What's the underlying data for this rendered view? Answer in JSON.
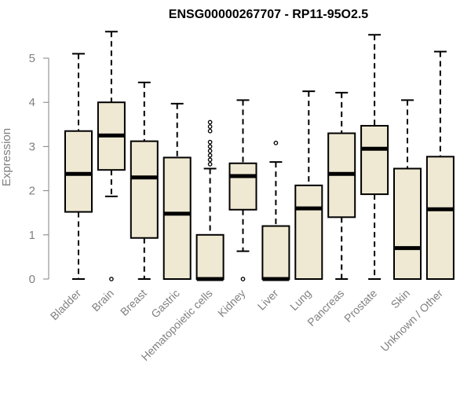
{
  "chart_data": {
    "type": "box",
    "title": "ENSG00000267707 - RP11-95O2.5",
    "xlabel": "",
    "ylabel": "Expression",
    "ylim": [
      0,
      5.7
    ],
    "yticks": [
      0,
      1,
      2,
      3,
      4,
      5
    ],
    "box_fill": "#efe9d3",
    "box_stroke": "#000000",
    "categories": [
      "Bladder",
      "Brain",
      "Breast",
      "Gastric",
      "Hematopoietic cells",
      "Kidney",
      "Liver",
      "Lung",
      "Pancreas",
      "Prostate",
      "Skin",
      "Unknown / Other"
    ],
    "boxes": [
      {
        "min": 0.0,
        "q1": 1.52,
        "median": 2.38,
        "q3": 3.35,
        "max": 5.1,
        "outliers": []
      },
      {
        "min": 1.87,
        "q1": 2.47,
        "median": 3.25,
        "q3": 4.0,
        "max": 5.6,
        "outliers": [
          0.0
        ]
      },
      {
        "min": 0.0,
        "q1": 0.93,
        "median": 2.3,
        "q3": 3.12,
        "max": 4.45,
        "outliers": []
      },
      {
        "min": 0.0,
        "q1": 0.0,
        "median": 1.48,
        "q3": 2.75,
        "max": 3.97,
        "outliers": []
      },
      {
        "min": 0.0,
        "q1": 0.0,
        "median": 0.0,
        "q3": 1.0,
        "max": 2.5,
        "outliers": [
          2.6,
          2.7,
          2.8,
          2.9,
          3.0,
          3.1,
          3.35,
          3.45,
          3.55
        ]
      },
      {
        "min": 0.63,
        "q1": 1.57,
        "median": 2.33,
        "q3": 2.62,
        "max": 4.05,
        "outliers": [
          0.0
        ]
      },
      {
        "min": 0.0,
        "q1": 0.0,
        "median": 0.0,
        "q3": 1.2,
        "max": 2.65,
        "outliers": [
          3.08
        ]
      },
      {
        "min": 0.0,
        "q1": 0.0,
        "median": 1.6,
        "q3": 2.12,
        "max": 4.25,
        "outliers": []
      },
      {
        "min": 0.0,
        "q1": 1.4,
        "median": 2.38,
        "q3": 3.3,
        "max": 4.22,
        "outliers": []
      },
      {
        "min": 0.0,
        "q1": 1.92,
        "median": 2.95,
        "q3": 3.47,
        "max": 5.53,
        "outliers": []
      },
      {
        "min": 0.0,
        "q1": 0.0,
        "median": 0.7,
        "q3": 2.5,
        "max": 4.05,
        "outliers": []
      },
      {
        "min": 0.0,
        "q1": 0.0,
        "median": 1.58,
        "q3": 2.77,
        "max": 5.15,
        "outliers": []
      }
    ]
  }
}
